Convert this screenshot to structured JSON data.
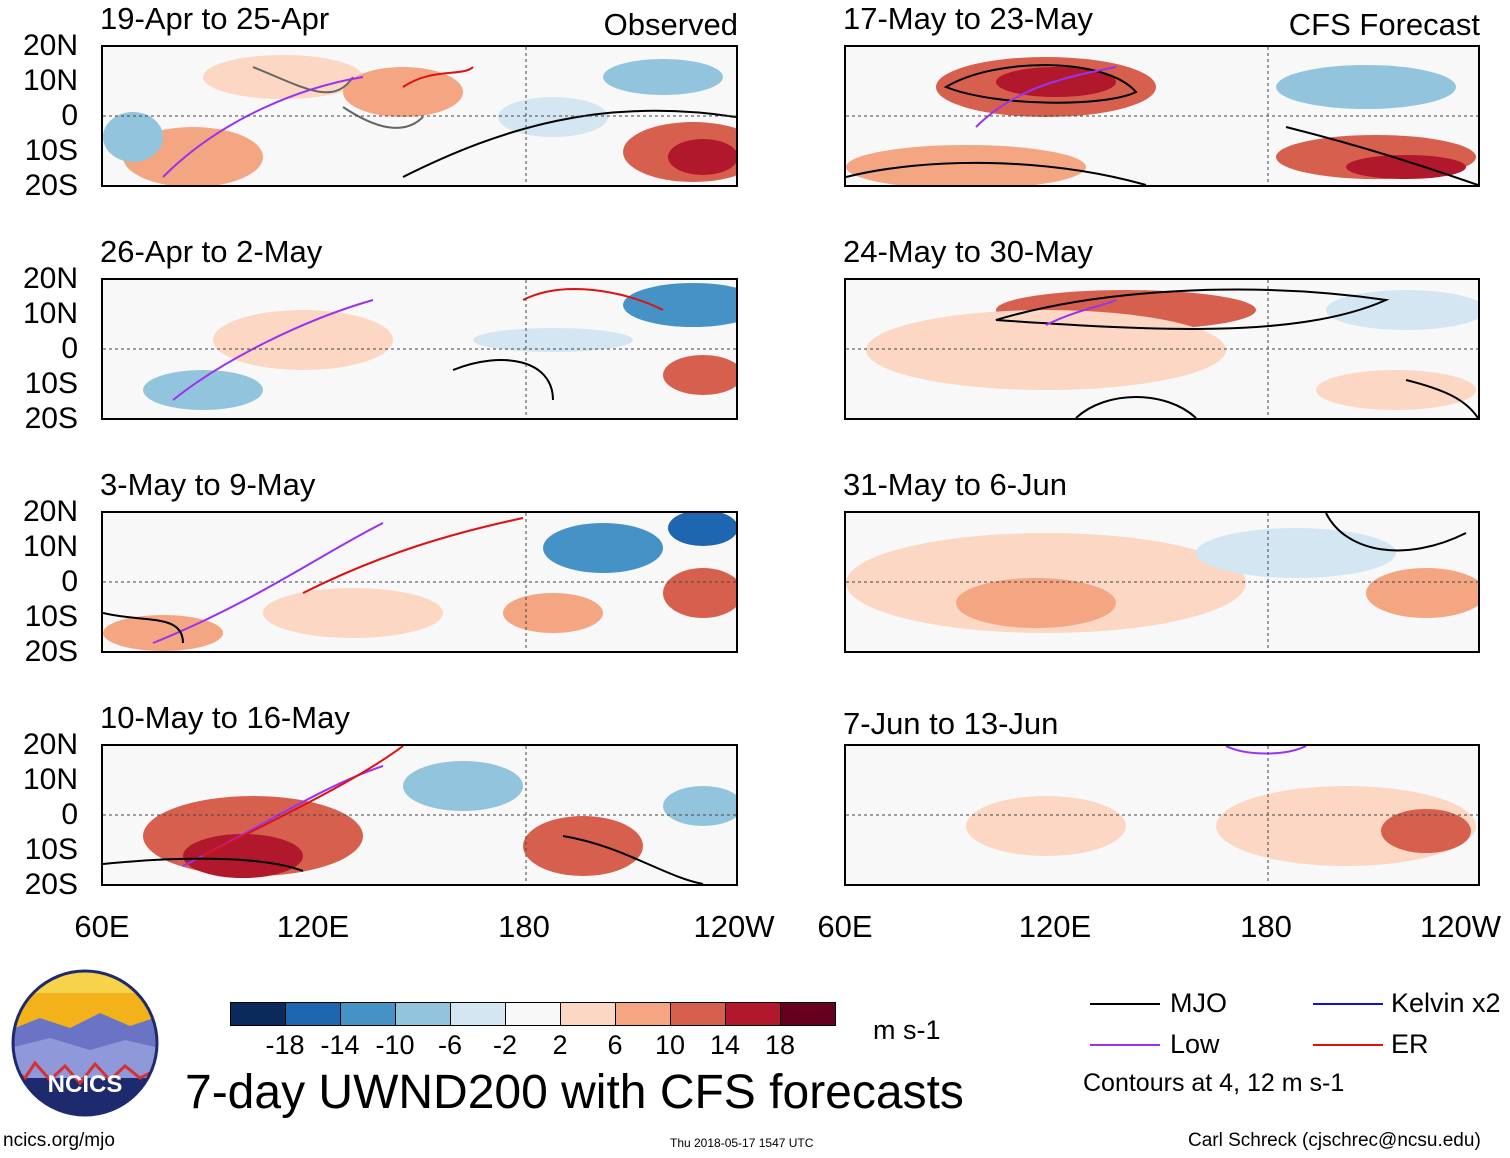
{
  "header": {
    "observed_label": "Observed",
    "forecast_label": "CFS Forecast"
  },
  "panels": {
    "observed": [
      {
        "title": "19-Apr to 25-Apr"
      },
      {
        "title": "26-Apr to 2-May"
      },
      {
        "title": "3-May to 9-May"
      },
      {
        "title": "10-May to 16-May"
      }
    ],
    "forecast": [
      {
        "title": "17-May to 23-May"
      },
      {
        "title": "24-May to 30-May"
      },
      {
        "title": "31-May to 6-Jun"
      },
      {
        "title": "7-Jun to 13-Jun"
      }
    ]
  },
  "axes": {
    "lat_labels": [
      "20N",
      "10N",
      "0",
      "10S",
      "20S"
    ],
    "lon_labels": [
      "60E",
      "120E",
      "180",
      "120W"
    ]
  },
  "colorbar": {
    "colors": [
      "#0b2a5c",
      "#1f66b0",
      "#4592c6",
      "#93c4de",
      "#d4e6f1",
      "#f8f8f8",
      "#fbd7c4",
      "#f4a582",
      "#d6604d",
      "#b2182b",
      "#67001f"
    ],
    "ticks": [
      "-18",
      "-14",
      "-10",
      "-6",
      "-2",
      "2",
      "6",
      "10",
      "14",
      "18"
    ],
    "units": "m s-1"
  },
  "main_title": "7-day UWND200 with CFS forecasts",
  "legend": {
    "items": [
      {
        "label": "MJO",
        "color": "#000000"
      },
      {
        "label": "Kelvin x2",
        "color": "#1010d0"
      },
      {
        "label": "Low",
        "color": "#9933ee"
      },
      {
        "label": "ER",
        "color": "#e01010"
      }
    ],
    "contours_note": "Contours at 4, 12 m s-1"
  },
  "logo": {
    "text": "NCICS"
  },
  "footer": {
    "url": "ncics.org/mjo",
    "timestamp": "Thu 2018-05-17 1547 UTC",
    "credit": "Carl Schreck (cjschrec@ncsu.edu)"
  }
}
